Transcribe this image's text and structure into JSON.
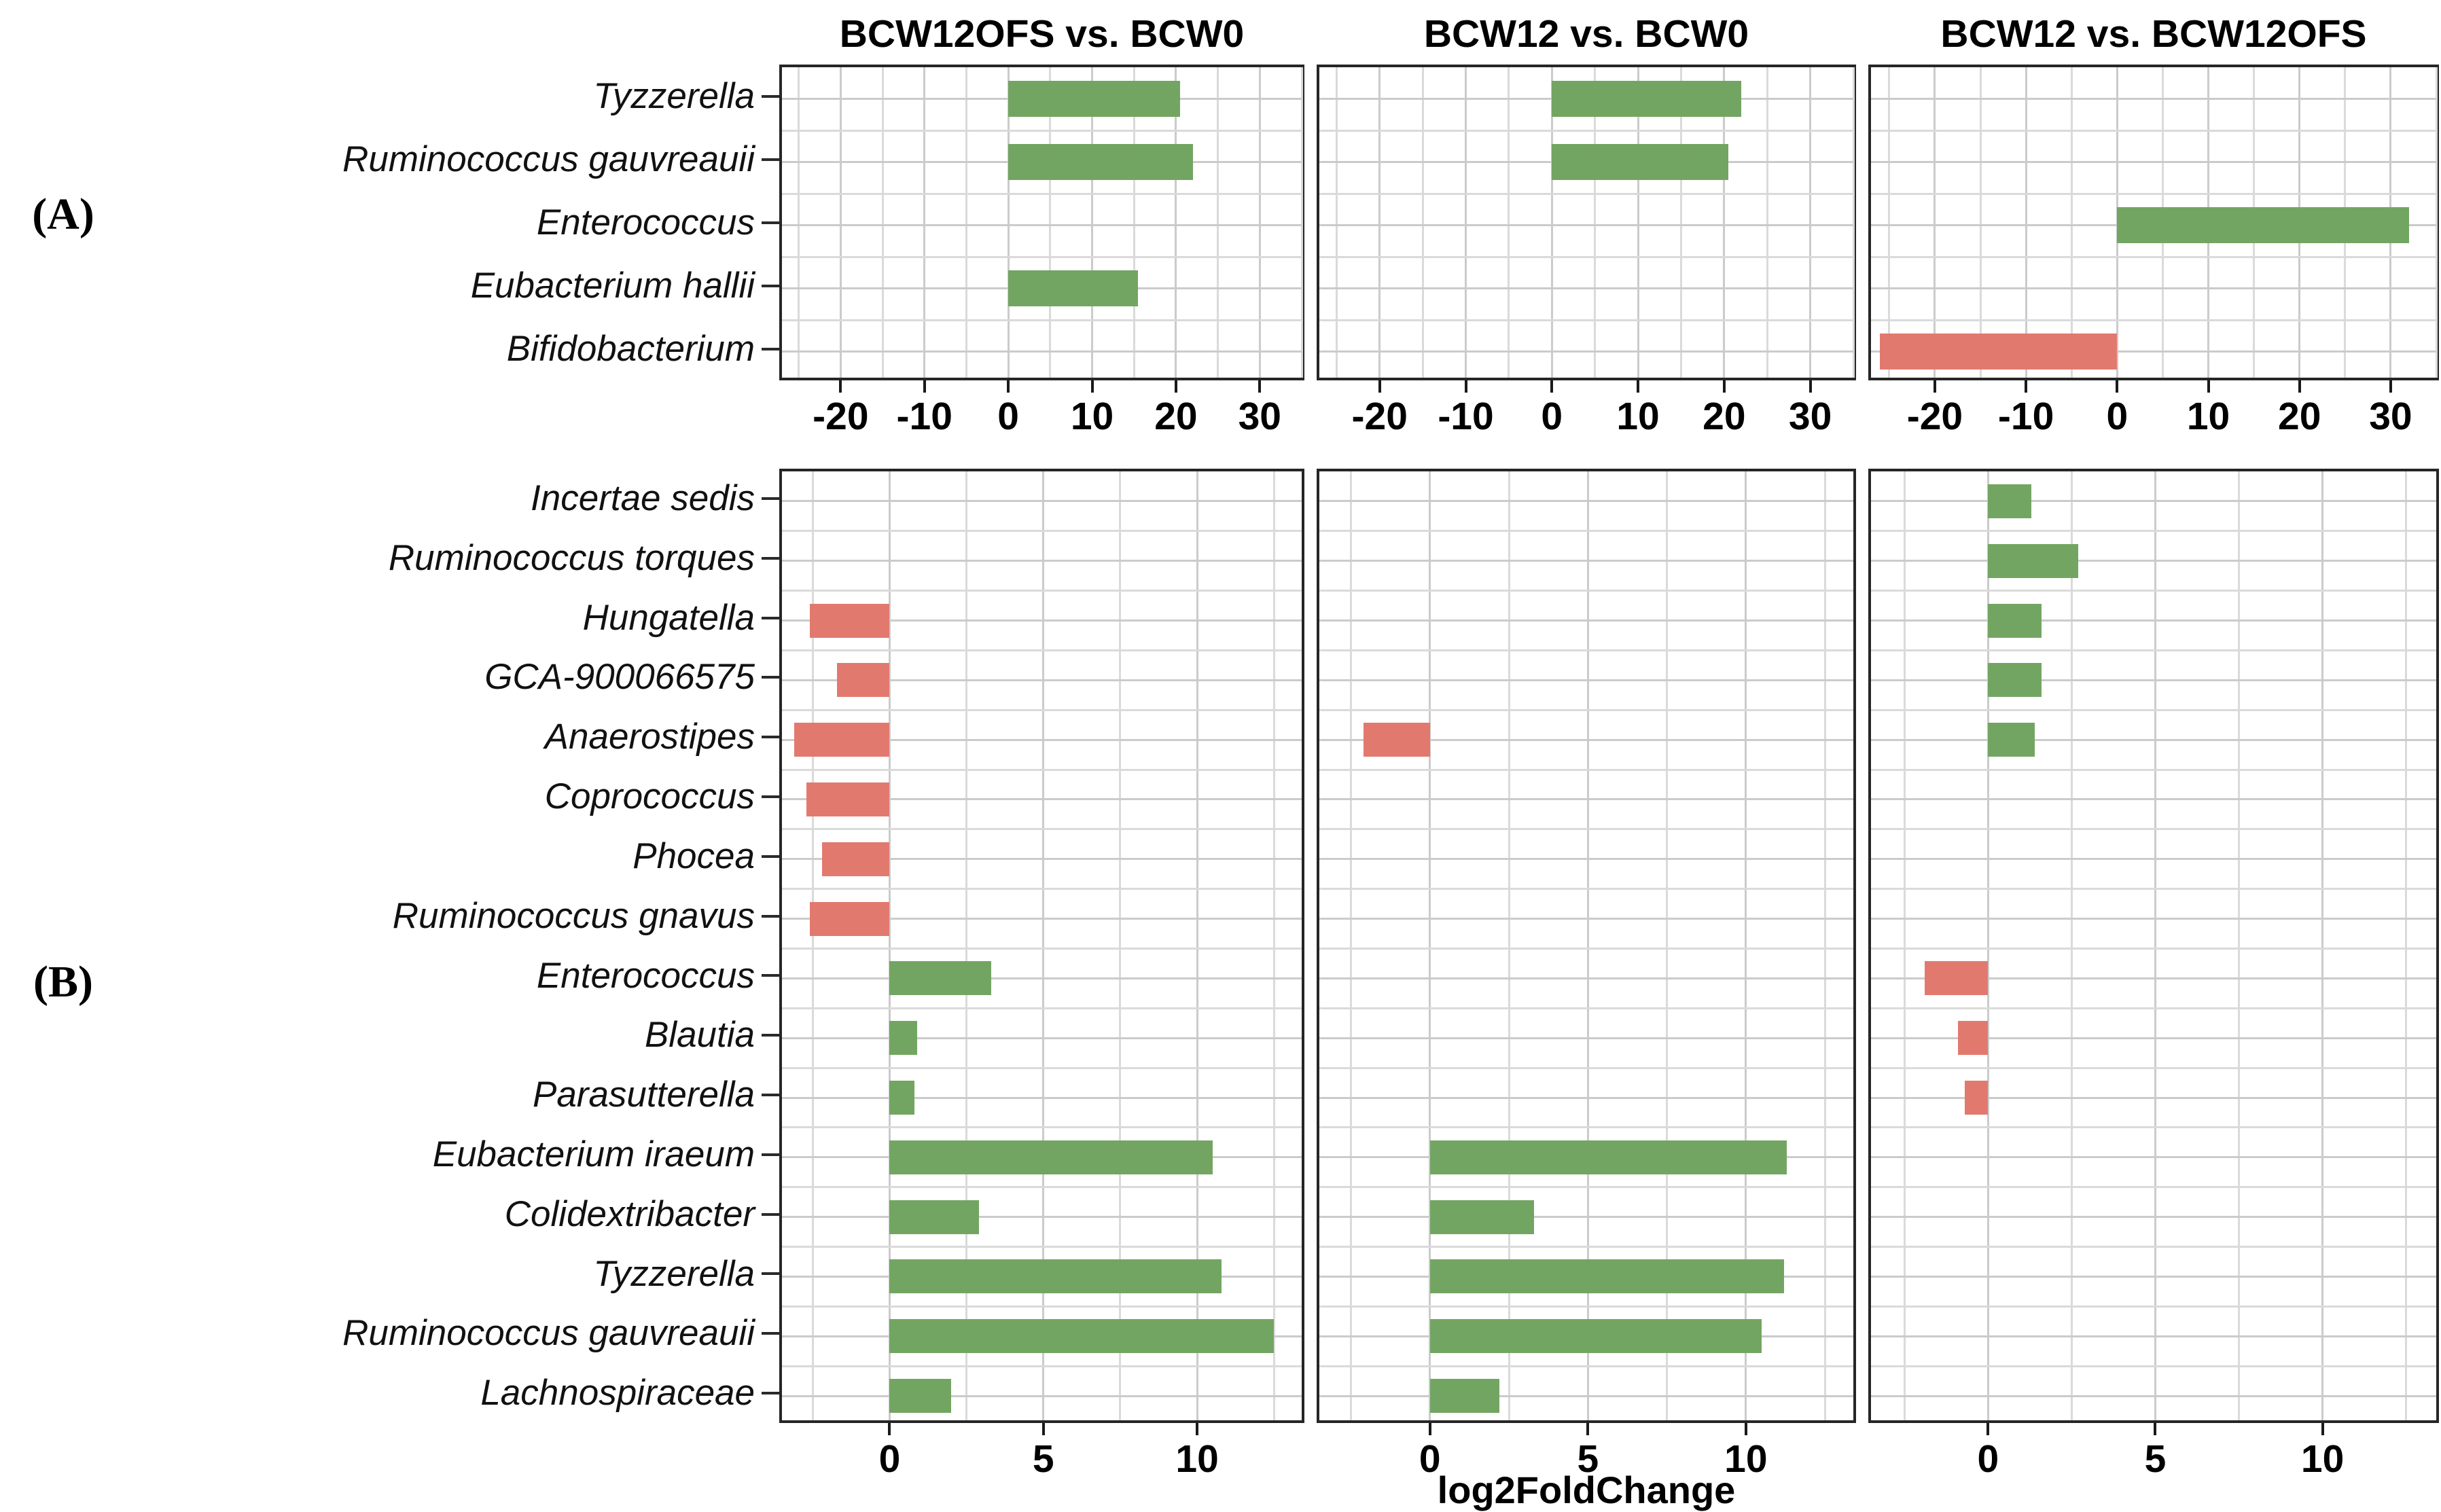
{
  "figure": {
    "panel_labels": {
      "a": "(A)",
      "b": "(B)"
    },
    "xaxis_title": "log2FoldChange",
    "colors": {
      "positive_bar": "#73a562",
      "negative_bar": "#e2796f",
      "grid": "#cbcbcb",
      "grid_minor": "#dadada",
      "border": "#262626",
      "text": "#000000"
    }
  },
  "chart_data": [
    {
      "type": "bar",
      "panel": "A",
      "orientation": "horizontal",
      "xlabel": "log2FoldChange",
      "ylabel": "",
      "xlim": [
        -27,
        35
      ],
      "xticks": [
        -20,
        -10,
        0,
        10,
        20,
        30
      ],
      "minor_tick_step": 5,
      "grid": true,
      "legend_position": "none",
      "bar_color_rule": "green = positive log2FoldChange, red = negative",
      "categories": [
        "Tyzzerella",
        "Ruminococcus gauvreauii",
        "Enterococcus",
        "Eubacterium hallii",
        "Bifidobacterium"
      ],
      "series": [
        {
          "name": "BCW12OFS vs. BCW0",
          "values": [
            20.5,
            22,
            null,
            15.5,
            null
          ]
        },
        {
          "name": "BCW12 vs. BCW0",
          "values": [
            22,
            20.5,
            null,
            null,
            null
          ]
        },
        {
          "name": "BCW12 vs. BCW12OFS",
          "values": [
            null,
            null,
            32,
            null,
            -26
          ]
        }
      ]
    },
    {
      "type": "bar",
      "panel": "B",
      "orientation": "horizontal",
      "xlabel": "log2FoldChange",
      "ylabel": "",
      "xlim": [
        -3.5,
        13.4
      ],
      "xticks": [
        0,
        5,
        10
      ],
      "minor_tick_step": 2.5,
      "grid": true,
      "legend_position": "none",
      "bar_color_rule": "green = positive log2FoldChange, red = negative",
      "categories": [
        "Incertae sedis",
        "Ruminococcus torques",
        "Hungatella",
        "GCA-900066575",
        "Anaerostipes",
        "Coprococcus",
        "Phocea",
        "Ruminococcus gnavus",
        "Enterococcus",
        "Blautia",
        "Parasutterella",
        "Eubacterium iraeum",
        "Colidextribacter",
        "Tyzzerella",
        "Ruminococcus gauvreauii",
        "Lachnospiraceae"
      ],
      "series": [
        {
          "name": "BCW12OFS vs. BCW0",
          "values": [
            null,
            null,
            -2.6,
            -1.7,
            -3.1,
            -2.7,
            -2.2,
            -2.6,
            3.3,
            0.9,
            0.8,
            10.5,
            2.9,
            10.8,
            12.5,
            2.0
          ]
        },
        {
          "name": "BCW12 vs. BCW0",
          "values": [
            null,
            null,
            null,
            null,
            -2.1,
            null,
            null,
            null,
            null,
            null,
            null,
            11.3,
            3.3,
            11.2,
            10.5,
            2.2
          ]
        },
        {
          "name": "BCW12 vs. BCW12OFS",
          "values": [
            1.3,
            2.7,
            1.6,
            1.6,
            1.4,
            null,
            null,
            null,
            -1.9,
            -0.9,
            -0.7,
            null,
            null,
            null,
            null,
            null
          ]
        }
      ]
    }
  ]
}
